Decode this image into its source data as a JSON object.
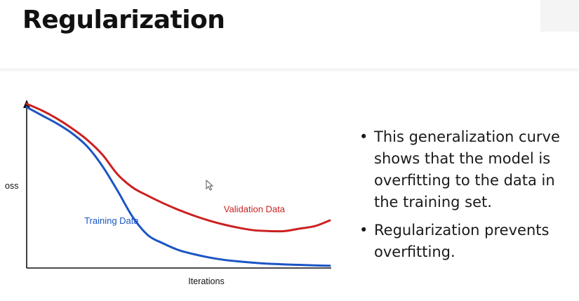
{
  "slide": {
    "title": "Regularization"
  },
  "chart_data": {
    "type": "line",
    "xlabel": "Iterations",
    "ylabel": "oss",
    "x": [
      0,
      5,
      10,
      15,
      20,
      25,
      30,
      35,
      40,
      45,
      50,
      55,
      60,
      65,
      70,
      75,
      80,
      85,
      90,
      95,
      100
    ],
    "series": [
      {
        "name": "Validation Data",
        "color": "#cc2020",
        "values": [
          100,
          96,
          91,
          85,
          78,
          69,
          57,
          49,
          44,
          39.5,
          35.5,
          32,
          29,
          26.5,
          24.5,
          23,
          22.5,
          22.5,
          24,
          25.5,
          29
        ]
      },
      {
        "name": "Training Data",
        "color": "#1a55c4",
        "values": [
          98,
          93,
          88,
          82,
          74,
          62,
          47,
          31,
          20,
          15,
          11,
          8.5,
          6.5,
          5,
          4,
          3.2,
          2.6,
          2.2,
          1.9,
          1.6,
          1.4
        ]
      }
    ],
    "xlim": [
      0,
      100
    ],
    "ylim": [
      0,
      100
    ],
    "grid": false,
    "axis_color": "#111111"
  },
  "bullets": [
    {
      "marker": "•",
      "text": "This generalization curve shows that the model is overfitting to the data in the training set."
    },
    {
      "marker": "•",
      "text": "Regularization prevents overfitting."
    }
  ]
}
